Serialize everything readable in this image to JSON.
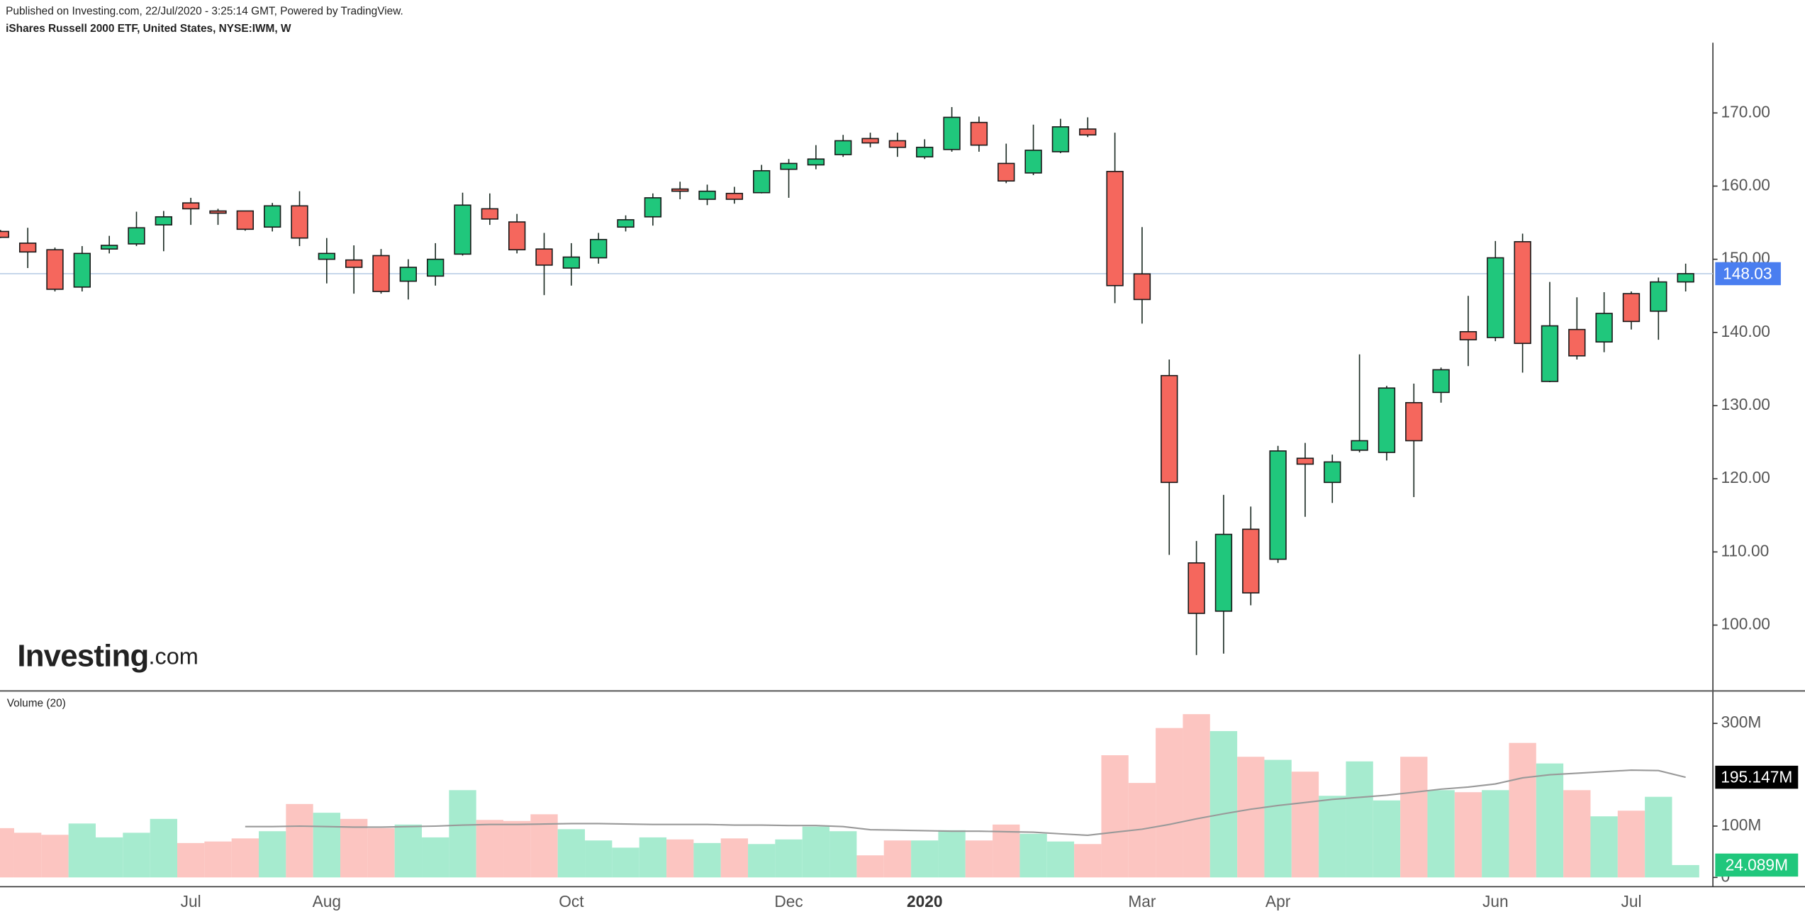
{
  "header": {
    "published": "Published on Investing.com, 22/Jul/2020 - 3:25:14 GMT, Powered by TradingView.",
    "symbol": "iShares Russell 2000 ETF, United States, NYSE:IWM, W"
  },
  "logo": {
    "brand": "Investing",
    "suffix": ".com"
  },
  "chart_data": [
    {
      "type": "candlestick",
      "categories": [
        null,
        null,
        null,
        null,
        null,
        null,
        null,
        "Jul",
        null,
        null,
        null,
        null,
        "Aug",
        null,
        null,
        null,
        null,
        null,
        null,
        null,
        null,
        "Oct",
        null,
        null,
        null,
        null,
        null,
        null,
        null,
        "Dec",
        null,
        null,
        null,
        null,
        "2020",
        null,
        null,
        null,
        null,
        null,
        null,
        null,
        "Mar",
        null,
        null,
        null,
        null,
        "Apr",
        null,
        null,
        null,
        null,
        null,
        null,
        null,
        "Jun",
        null,
        null,
        null,
        null,
        "Jul",
        null,
        null
      ],
      "open": [
        153.8,
        152.2,
        151.3,
        146.2,
        151.4,
        152.1,
        154.7,
        157.7,
        156.6,
        156.6,
        154.4,
        157.3,
        150.0,
        149.9,
        150.5,
        147.0,
        147.7,
        150.7,
        156.9,
        155.1,
        151.4,
        148.8,
        150.2,
        154.4,
        155.8,
        159.6,
        158.2,
        159.0,
        159.1,
        162.3,
        162.9,
        164.3,
        166.5,
        166.2,
        164.0,
        165.0,
        168.7,
        163.1,
        161.8,
        164.7,
        167.8,
        162.0,
        148.0,
        134.1,
        108.5,
        101.9,
        113.1,
        109.0,
        122.8,
        119.5,
        123.9,
        123.6,
        130.4,
        131.8,
        140.1,
        139.3,
        152.4,
        133.3,
        140.4,
        138.7,
        145.3,
        142.9,
        146.9
      ],
      "high": [
        154.0,
        154.3,
        151.6,
        151.8,
        153.2,
        156.5,
        156.6,
        158.4,
        156.9,
        156.6,
        157.7,
        159.3,
        152.9,
        151.9,
        151.4,
        150.0,
        152.2,
        159.1,
        159.0,
        156.2,
        153.6,
        152.2,
        153.6,
        156.0,
        159.0,
        160.6,
        160.2,
        159.9,
        162.9,
        163.7,
        165.6,
        167.0,
        167.3,
        167.3,
        166.4,
        170.8,
        169.5,
        165.8,
        168.4,
        169.2,
        169.4,
        167.3,
        154.4,
        136.3,
        111.5,
        117.8,
        116.2,
        124.5,
        124.9,
        123.3,
        137.0,
        132.7,
        133.0,
        135.2,
        145.0,
        152.5,
        153.5,
        146.9,
        144.8,
        145.5,
        145.6,
        147.5,
        149.4
      ],
      "low": [
        152.9,
        148.8,
        145.6,
        145.6,
        150.8,
        151.8,
        151.1,
        154.7,
        154.7,
        153.9,
        153.8,
        151.8,
        146.7,
        145.3,
        145.3,
        144.5,
        146.4,
        150.5,
        154.7,
        150.8,
        145.1,
        146.4,
        149.4,
        153.8,
        154.6,
        158.2,
        157.4,
        157.6,
        159.0,
        158.4,
        162.3,
        164.0,
        165.3,
        164.0,
        163.7,
        164.7,
        164.7,
        160.4,
        161.5,
        164.5,
        166.7,
        144.0,
        141.2,
        109.6,
        95.9,
        96.1,
        102.7,
        108.5,
        114.8,
        116.7,
        123.6,
        122.5,
        117.5,
        130.4,
        135.4,
        138.8,
        134.5,
        133.2,
        136.3,
        137.3,
        140.4,
        139.0,
        145.6
      ],
      "close": [
        153.0,
        151.0,
        145.9,
        150.8,
        151.9,
        154.3,
        155.8,
        156.9,
        156.3,
        154.1,
        157.3,
        152.9,
        150.8,
        148.9,
        145.6,
        148.9,
        150.0,
        157.4,
        155.5,
        151.3,
        149.2,
        150.3,
        152.7,
        155.4,
        158.4,
        159.3,
        159.3,
        158.2,
        162.1,
        163.1,
        163.7,
        166.2,
        165.9,
        165.3,
        165.3,
        169.4,
        165.6,
        160.7,
        164.9,
        168.1,
        167.0,
        146.4,
        144.5,
        119.5,
        101.6,
        112.4,
        104.4,
        123.8,
        122.0,
        122.3,
        125.2,
        132.4,
        125.2,
        134.9,
        139.0,
        150.2,
        138.5,
        140.9,
        136.8,
        142.6,
        141.5,
        146.9,
        148.03
      ],
      "up_color": "#20c77c",
      "down_color": "#f5675d",
      "ylim": [
        91,
        179.6
      ],
      "yticks": [
        {
          "value": 100,
          "label": "100.00"
        },
        {
          "value": 110,
          "label": "110.00"
        },
        {
          "value": 120,
          "label": "120.00"
        },
        {
          "value": 130,
          "label": "130.00"
        },
        {
          "value": 140,
          "label": "140.00"
        },
        {
          "value": 150,
          "label": "150.00"
        },
        {
          "value": 160,
          "label": "160.00"
        },
        {
          "value": 170,
          "label": "170.00"
        }
      ],
      "last_price": 148.03,
      "last_price_color": "#4a7ef0"
    },
    {
      "type": "bar",
      "title": "Volume (20)",
      "values": [
        96000000,
        87000000,
        83000000,
        105000000,
        78000000,
        87000000,
        114000000,
        67000000,
        70000000,
        76000000,
        90000000,
        143000000,
        126000000,
        114000000,
        96000000,
        103000000,
        78000000,
        170000000,
        112000000,
        110000000,
        123000000,
        94000000,
        72000000,
        58000000,
        78000000,
        74000000,
        67000000,
        76000000,
        65000000,
        74000000,
        99000000,
        90000000,
        43000000,
        72000000,
        72000000,
        92000000,
        72000000,
        103000000,
        85000000,
        70000000,
        65000000,
        238000000,
        184000000,
        291000000,
        318000000,
        285000000,
        235000000,
        229000000,
        206000000,
        159000000,
        226000000,
        150000000,
        235000000,
        170000000,
        166000000,
        170000000,
        262000000,
        222000000,
        170000000,
        119000000,
        130000000,
        157000000,
        24089000
      ],
      "value_labels": [
        null,
        null,
        null,
        null,
        null,
        null,
        null,
        null,
        null,
        null,
        null,
        null,
        null,
        null,
        null,
        null,
        null,
        null,
        null,
        null,
        null,
        null,
        null,
        null,
        null,
        null,
        null,
        null,
        null,
        null,
        null,
        null,
        null,
        null,
        null,
        null,
        null,
        null,
        null,
        null,
        null,
        null,
        null,
        null,
        null,
        null,
        null,
        null,
        null,
        null,
        null,
        null,
        null,
        null,
        null,
        null,
        null,
        null,
        null,
        null,
        null,
        null,
        "24.089M"
      ],
      "up_color": "#a6ebcf",
      "down_color": "#fcc5c1",
      "label_color": "#20c77c",
      "ma": {
        "color": "#999999",
        "values": [
          null,
          null,
          null,
          null,
          null,
          null,
          null,
          null,
          null,
          99000000,
          99000000,
          100000000,
          99000000,
          98000000,
          98000000,
          99000000,
          100000000,
          102000000,
          103000000,
          103000000,
          104000000,
          105000000,
          105000000,
          104000000,
          103000000,
          103000000,
          103000000,
          102000000,
          102000000,
          101000000,
          101000000,
          99000000,
          93000000,
          92000000,
          91000000,
          90000000,
          90000000,
          89000000,
          88000000,
          85000000,
          82000000,
          88000000,
          94000000,
          103000000,
          114000000,
          124000000,
          133000000,
          140000000,
          146000000,
          152000000,
          156000000,
          160000000,
          166000000,
          172000000,
          176000000,
          182000000,
          194000000,
          200000000,
          203000000,
          206000000,
          209000000,
          208000000,
          195147000
        ],
        "value_labels": [
          null,
          null,
          null,
          null,
          null,
          null,
          null,
          null,
          null,
          null,
          null,
          null,
          null,
          null,
          null,
          null,
          null,
          null,
          null,
          null,
          null,
          null,
          null,
          null,
          null,
          null,
          null,
          null,
          null,
          null,
          null,
          null,
          null,
          null,
          null,
          null,
          null,
          null,
          null,
          null,
          null,
          null,
          null,
          null,
          null,
          null,
          null,
          null,
          null,
          null,
          null,
          null,
          null,
          null,
          null,
          null,
          null,
          null,
          null,
          null,
          null,
          null,
          "195.147M"
        ]
      },
      "ylim": [
        -18000000,
        361000000
      ],
      "yticks": [
        0,
        {
          "value": 100000000,
          "label": "100M"
        },
        {
          "value": 300000000,
          "label": "300M"
        }
      ]
    }
  ]
}
